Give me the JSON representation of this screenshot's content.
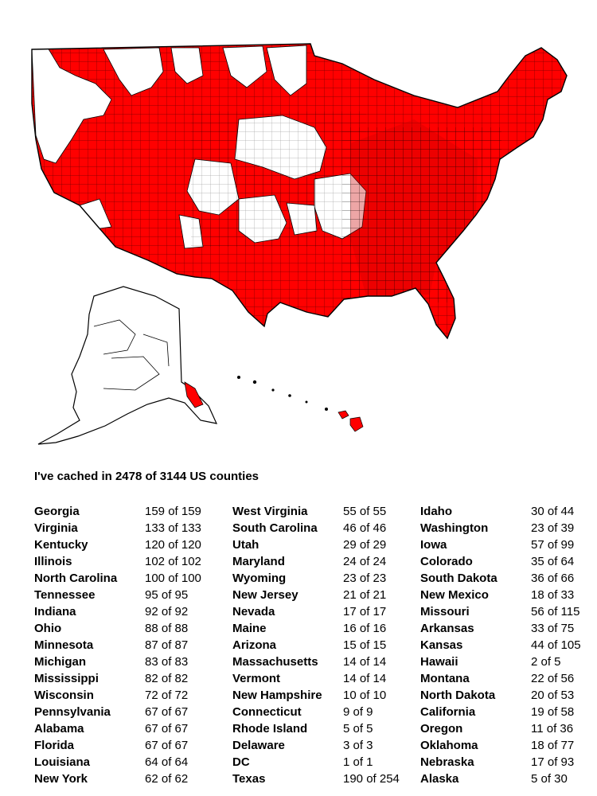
{
  "colors": {
    "cached": "#ff0000",
    "uncached": "#ffffff",
    "border": "#000000"
  },
  "summary": "I've cached in 2478 of 3144 US counties",
  "columns": [
    [
      {
        "state": "Georgia",
        "count": "159 of 159"
      },
      {
        "state": "Virginia",
        "count": "133 of 133"
      },
      {
        "state": "Kentucky",
        "count": "120 of 120"
      },
      {
        "state": "Illinois",
        "count": "102 of 102"
      },
      {
        "state": "North Carolina",
        "count": "100 of 100"
      },
      {
        "state": "Tennessee",
        "count": "95 of 95"
      },
      {
        "state": "Indiana",
        "count": "92 of 92"
      },
      {
        "state": "Ohio",
        "count": "88 of 88"
      },
      {
        "state": "Minnesota",
        "count": "87 of 87"
      },
      {
        "state": "Michigan",
        "count": "83 of 83"
      },
      {
        "state": "Mississippi",
        "count": "82 of 82"
      },
      {
        "state": "Wisconsin",
        "count": "72 of 72"
      },
      {
        "state": "Pennsylvania",
        "count": "67 of 67"
      },
      {
        "state": "Alabama",
        "count": "67 of 67"
      },
      {
        "state": "Florida",
        "count": "67 of 67"
      },
      {
        "state": "Louisiana",
        "count": "64 of 64"
      },
      {
        "state": "New York",
        "count": "62 of 62"
      }
    ],
    [
      {
        "state": "West Virginia",
        "count": "55 of 55"
      },
      {
        "state": "South Carolina",
        "count": "46 of 46"
      },
      {
        "state": "Utah",
        "count": "29 of 29"
      },
      {
        "state": "Maryland",
        "count": "24 of 24"
      },
      {
        "state": "Wyoming",
        "count": "23 of 23"
      },
      {
        "state": "New Jersey",
        "count": "21 of 21"
      },
      {
        "state": "Nevada",
        "count": "17 of 17"
      },
      {
        "state": "Maine",
        "count": "16 of 16"
      },
      {
        "state": "Arizona",
        "count": "15 of 15"
      },
      {
        "state": "Massachusetts",
        "count": "14 of 14"
      },
      {
        "state": "Vermont",
        "count": "14 of 14"
      },
      {
        "state": "New Hampshire",
        "count": "10 of 10"
      },
      {
        "state": "Connecticut",
        "count": "9 of 9"
      },
      {
        "state": "Rhode Island",
        "count": "5 of 5"
      },
      {
        "state": "Delaware",
        "count": "3 of 3"
      },
      {
        "state": "DC",
        "count": "1 of 1"
      },
      {
        "state": "Texas",
        "count": "190 of 254"
      }
    ],
    [
      {
        "state": "Idaho",
        "count": "30 of 44"
      },
      {
        "state": "Washington",
        "count": "23 of 39"
      },
      {
        "state": "Iowa",
        "count": "57 of 99"
      },
      {
        "state": "Colorado",
        "count": "35 of 64"
      },
      {
        "state": "South Dakota",
        "count": "36 of 66"
      },
      {
        "state": "New Mexico",
        "count": "18 of 33"
      },
      {
        "state": "Missouri",
        "count": "56 of 115"
      },
      {
        "state": "Arkansas",
        "count": "33 of 75"
      },
      {
        "state": "Kansas",
        "count": "44 of 105"
      },
      {
        "state": "Hawaii",
        "count": "2 of 5"
      },
      {
        "state": "Montana",
        "count": "22 of 56"
      },
      {
        "state": "North Dakota",
        "count": "20 of 53"
      },
      {
        "state": "California",
        "count": "19 of 58"
      },
      {
        "state": "Oregon",
        "count": "11 of 36"
      },
      {
        "state": "Oklahoma",
        "count": "18 of 77"
      },
      {
        "state": "Nebraska",
        "count": "17 of 93"
      },
      {
        "state": "Alaska",
        "count": "5 of 30"
      }
    ]
  ]
}
